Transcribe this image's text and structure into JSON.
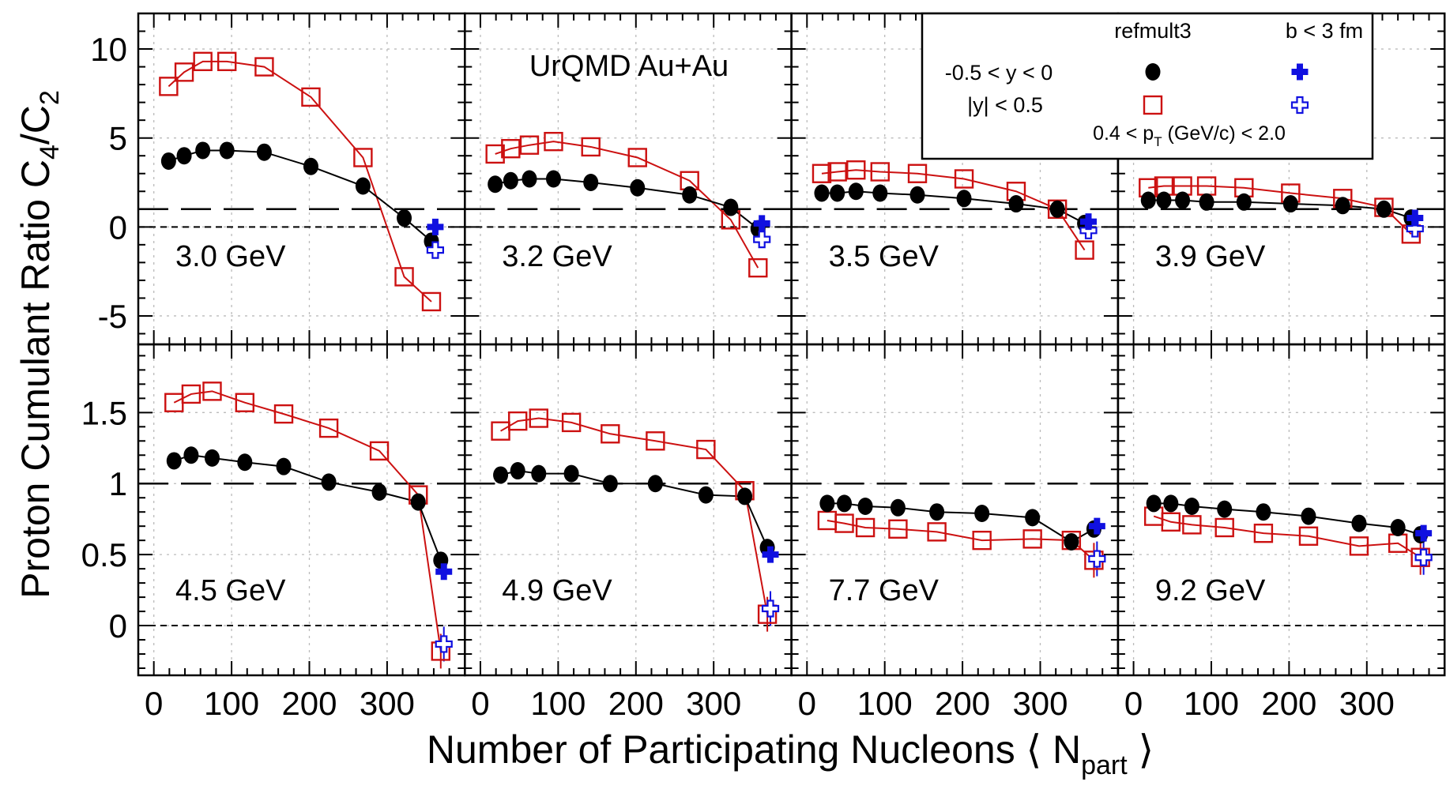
{
  "chart_data": {
    "type": "scatter",
    "xlabel": "Number of Participating Nucleons",
    "xlabel_symbol": "N",
    "xlabel_sub": "part",
    "ylabel": "Proton Cumulant Ratio C",
    "ylabel_sub1": "4",
    "ylabel_mid": "/C",
    "ylabel_sub2": "2",
    "annotation": "UrQMD Au+Au",
    "grid": true,
    "xlim": [
      -20,
      400
    ],
    "xticks": [
      "0",
      "100",
      "200",
      "300"
    ],
    "rows": [
      {
        "ylim": [
          -6.6,
          12
        ],
        "yticks": [
          {
            "v": 10,
            "label": "10"
          },
          {
            "v": 5,
            "label": "5"
          },
          {
            "v": 0,
            "label": "0"
          },
          {
            "v": -5,
            "label": "-5"
          }
        ]
      },
      {
        "ylim": [
          -0.35,
          1.98
        ],
        "yticks": [
          {
            "v": 1.5,
            "label": "1.5"
          },
          {
            "v": 1,
            "label": "1"
          },
          {
            "v": 0.5,
            "label": "0.5"
          },
          {
            "v": 0,
            "label": "0"
          }
        ]
      }
    ],
    "reference_lines": [
      {
        "y": 1,
        "style": "long-dash"
      },
      {
        "y": 0,
        "style": "short-dash"
      }
    ],
    "legend": {
      "placement": "top-right",
      "col_headers": [
        "refmult3",
        "b < 3 fm"
      ],
      "rows": [
        "-0.5 < y < 0",
        "|y| < 0.5"
      ],
      "note_pre": "0.4 < p",
      "note_sub": "T",
      "note_post": " (GeV/c) < 2.0"
    },
    "colors": {
      "black_series": "#000000",
      "red_series": "#cc1111",
      "blue_series": "#1010e0"
    },
    "panels": [
      {
        "label": "3.0 GeV",
        "row": 0,
        "x": [
          19,
          39,
          63,
          94,
          142,
          202,
          269,
          322,
          357
        ],
        "refmult3_rapidity_m05_0": [
          3.7,
          4.0,
          4.3,
          4.3,
          4.2,
          3.4,
          2.3,
          0.5,
          -0.8
        ],
        "refmult3_absy_05": [
          7.9,
          8.7,
          9.3,
          9.3,
          9.0,
          7.3,
          3.9,
          -2.8,
          -4.2
        ],
        "b3_x": 362,
        "b3_rapidity_m05_0": 0.0,
        "b3_absy_05": -1.3
      },
      {
        "label": "3.2 GeV",
        "row": 0,
        "x": [
          19,
          39,
          63,
          94,
          142,
          202,
          269,
          322,
          357
        ],
        "refmult3_rapidity_m05_0": [
          2.4,
          2.6,
          2.7,
          2.7,
          2.5,
          2.2,
          1.8,
          1.1,
          -0.1
        ],
        "refmult3_absy_05": [
          4.1,
          4.4,
          4.6,
          4.8,
          4.5,
          3.9,
          2.6,
          0.4,
          -2.3
        ],
        "b3_x": 362,
        "b3_rapidity_m05_0": 0.2,
        "b3_absy_05": -0.7
      },
      {
        "label": "3.5 GeV",
        "row": 0,
        "x": [
          19,
          39,
          63,
          94,
          142,
          202,
          269,
          322,
          357
        ],
        "refmult3_rapidity_m05_0": [
          1.9,
          1.9,
          2.0,
          1.9,
          1.8,
          1.6,
          1.3,
          1.0,
          0.2
        ],
        "refmult3_absy_05": [
          3.0,
          3.1,
          3.2,
          3.1,
          3.0,
          2.7,
          2.0,
          1.0,
          -1.3
        ],
        "b3_x": 362,
        "b3_rapidity_m05_0": 0.3,
        "b3_absy_05": -0.2
      },
      {
        "label": "3.9 GeV",
        "row": 0,
        "x": [
          19,
          39,
          63,
          94,
          142,
          202,
          269,
          322,
          357
        ],
        "refmult3_rapidity_m05_0": [
          1.5,
          1.5,
          1.5,
          1.4,
          1.4,
          1.3,
          1.2,
          1.0,
          0.5
        ],
        "refmult3_absy_05": [
          2.2,
          2.3,
          2.3,
          2.3,
          2.2,
          1.9,
          1.6,
          1.1,
          -0.4
        ],
        "b3_x": 362,
        "b3_rapidity_m05_0": 0.5,
        "b3_absy_05": -0.1
      },
      {
        "label": "4.5 GeV",
        "row": 1,
        "x": [
          26,
          48,
          75,
          117,
          167,
          225,
          290,
          340,
          369
        ],
        "refmult3_rapidity_m05_0": [
          1.16,
          1.2,
          1.18,
          1.15,
          1.12,
          1.01,
          0.94,
          0.87,
          0.46
        ],
        "refmult3_absy_05": [
          1.57,
          1.63,
          1.65,
          1.57,
          1.49,
          1.39,
          1.23,
          0.92,
          -0.18
        ],
        "b3_x": 373,
        "b3_rapidity_m05_0": 0.38,
        "b3_absy_05": -0.13
      },
      {
        "label": "4.9 GeV",
        "row": 1,
        "x": [
          26,
          48,
          75,
          117,
          167,
          225,
          290,
          340,
          369
        ],
        "refmult3_rapidity_m05_0": [
          1.06,
          1.09,
          1.07,
          1.07,
          1.0,
          1.0,
          0.92,
          0.91,
          0.55
        ],
        "refmult3_absy_05": [
          1.37,
          1.44,
          1.46,
          1.43,
          1.35,
          1.3,
          1.24,
          0.95,
          0.08
        ],
        "b3_x": 373,
        "b3_rapidity_m05_0": 0.5,
        "b3_absy_05": 0.12
      },
      {
        "label": "7.7 GeV",
        "row": 1,
        "x": [
          26,
          48,
          75,
          117,
          167,
          225,
          290,
          340,
          369
        ],
        "refmult3_rapidity_m05_0": [
          0.86,
          0.86,
          0.84,
          0.83,
          0.8,
          0.79,
          0.76,
          0.59,
          0.68
        ],
        "refmult3_absy_05": [
          0.74,
          0.72,
          0.69,
          0.68,
          0.66,
          0.6,
          0.61,
          0.6,
          0.46
        ],
        "b3_x": 373,
        "b3_rapidity_m05_0": 0.7,
        "b3_absy_05": 0.47
      },
      {
        "label": "9.2 GeV",
        "row": 1,
        "x": [
          26,
          48,
          75,
          117,
          167,
          225,
          290,
          340,
          369
        ],
        "refmult3_rapidity_m05_0": [
          0.86,
          0.86,
          0.84,
          0.82,
          0.8,
          0.77,
          0.72,
          0.69,
          0.64
        ],
        "refmult3_absy_05": [
          0.77,
          0.73,
          0.71,
          0.69,
          0.65,
          0.63,
          0.56,
          0.58,
          0.48
        ],
        "b3_x": 373,
        "b3_rapidity_m05_0": 0.65,
        "b3_absy_05": 0.48
      }
    ]
  }
}
